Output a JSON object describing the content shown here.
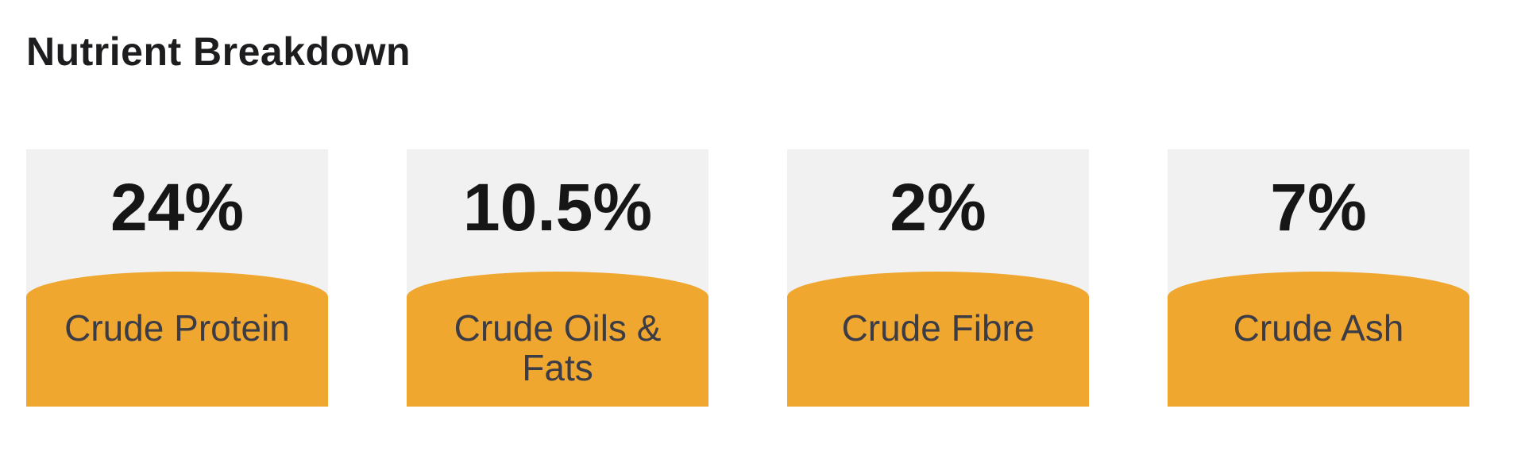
{
  "section": {
    "title": "Nutrient Breakdown",
    "cards": [
      {
        "value": "24%",
        "label": "Crude Protein"
      },
      {
        "value": "10.5%",
        "label": "Crude Oils & Fats"
      },
      {
        "value": "2%",
        "label": "Crude Fibre"
      },
      {
        "value": "7%",
        "label": "Crude Ash"
      }
    ]
  },
  "colors": {
    "page_bg": "#FFFFFF",
    "card_bg": "#F1F1F2",
    "accent": "#F0A72F",
    "title_text": "#1D1D1F",
    "value_text": "#161616",
    "label_text": "#3C3C46"
  }
}
